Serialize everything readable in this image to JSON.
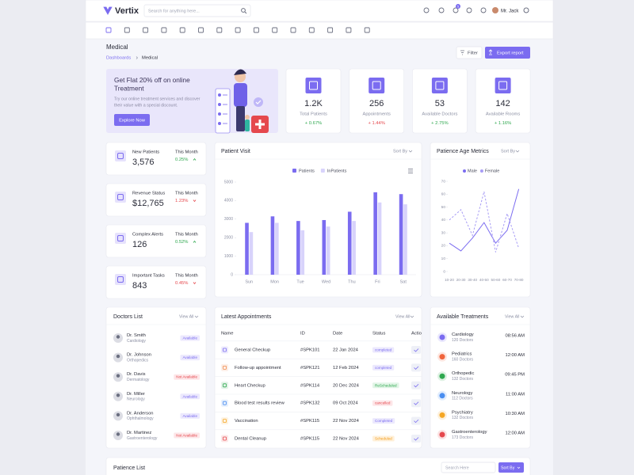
{
  "header": {
    "brand": "Vertix",
    "search_placeholder": "Search for anything here...",
    "cart_badge": "5",
    "user": "Mr. Jack"
  },
  "page": {
    "title": "Medical",
    "breadcrumb": [
      "Dashboards",
      "Medical"
    ],
    "actions": [
      "Filter",
      "Export report"
    ]
  },
  "promo": {
    "title_lines": [
      "Get Flat 20% off on online",
      "Treatment"
    ],
    "text_lines": [
      "Try our online treatment services and discover",
      "their value with a special discount."
    ],
    "button": "Explore Now"
  },
  "stats": [
    {
      "value": "1.2K",
      "label": "Total Patients",
      "change": "+ 0.67%",
      "trend": "up"
    },
    {
      "value": "256",
      "label": "Appointments",
      "change": "+ 1.44%",
      "trend": "down"
    },
    {
      "value": "53",
      "label": "Available Doctors",
      "change": "+ 2.75%",
      "trend": "up"
    },
    {
      "value": "142",
      "label": "Available Rooms",
      "change": "+ 1.16%",
      "trend": "up"
    }
  ],
  "summary_cards": [
    {
      "title": "New Patients",
      "value": "3,576",
      "period": "This Month",
      "change": "0.25%",
      "trend": "up"
    },
    {
      "title": "Revenue Status",
      "value": "$12,765",
      "period": "This Month",
      "change": "1.23%",
      "trend": "down"
    },
    {
      "title": "Complex Alerts",
      "value": "126",
      "period": "This Month",
      "change": "0.52%",
      "trend": "up"
    },
    {
      "title": "Important Tasks",
      "value": "843",
      "period": "This Month",
      "change": "0.45%",
      "trend": "down"
    }
  ],
  "patient_visit": {
    "type": "bar",
    "title": "Patient Visit",
    "sort": "Sort By",
    "categories": [
      "Sun",
      "Mon",
      "Tue",
      "Wed",
      "Thu",
      "Fri",
      "Sat"
    ],
    "series": [
      {
        "name": "Patients",
        "color": "#7b6cf0",
        "values": [
          2800,
          3150,
          2900,
          2950,
          3400,
          4450,
          4350
        ]
      },
      {
        "name": "InPatients",
        "color": "#d8d3fb",
        "values": [
          2300,
          2800,
          2400,
          2600,
          2900,
          3900,
          3800
        ]
      }
    ],
    "ylim": [
      0,
      5000
    ],
    "yticks": [
      0,
      1000,
      2000,
      3000,
      4000,
      5000
    ]
  },
  "age_metrics": {
    "type": "line",
    "title": "Patience Age Metrics",
    "sort": "Sort By",
    "categories": [
      "10-20",
      "20-30",
      "30-40",
      "40-50",
      "50-60",
      "60-70",
      "70-80"
    ],
    "series": [
      {
        "name": "Male",
        "color": "#7b6cf0",
        "dashed": false,
        "values": [
          22,
          16,
          26,
          38,
          22,
          32,
          64
        ]
      },
      {
        "name": "Female",
        "color": "#a79cf5",
        "dashed": true,
        "values": [
          40,
          48,
          28,
          62,
          15,
          45,
          18
        ]
      }
    ],
    "ylim": [
      0,
      70
    ],
    "yticks": [
      0,
      10,
      20,
      30,
      40,
      50,
      60,
      70
    ]
  },
  "doctors": {
    "title": "Doctors List",
    "view_all": "View All",
    "rows": [
      {
        "name": "Dr. Smith",
        "specialty": "Cardiology",
        "status": "Available"
      },
      {
        "name": "Dr. Johnson",
        "specialty": "Orthopedics",
        "status": "Available"
      },
      {
        "name": "Dr. Davis",
        "specialty": "Dermatology",
        "status": "Not Available"
      },
      {
        "name": "Dr. Miller",
        "specialty": "Neurology",
        "status": "Available"
      },
      {
        "name": "Dr. Anderson",
        "specialty": "Ophthalmology",
        "status": "Available"
      },
      {
        "name": "Dr. Martinez",
        "specialty": "Gastroenterology",
        "status": "Not Available"
      }
    ]
  },
  "appointments": {
    "title": "Latest Appointments",
    "view_all": "View All",
    "columns": [
      "Name",
      "ID",
      "Date",
      "Status",
      "Action"
    ],
    "rows": [
      [
        "General Checkup",
        "#SPK101",
        "22 Jan 2024",
        "completed"
      ],
      [
        "Follow-up appointment",
        "#SPK121",
        "12 Feb 2024",
        "completed"
      ],
      [
        "Heart Checkup",
        "#SPK114",
        "20 Dec 2024",
        "ReScheduled"
      ],
      [
        "Blood test results review",
        "#SPK132",
        "09 Oct 2024",
        "cancelled"
      ],
      [
        "Vaccination",
        "#SPK115",
        "22 Nov 2024",
        "Completed"
      ],
      [
        "Dental Cleanup",
        "#SPK115",
        "22 Nov 2024",
        "Scheduled"
      ]
    ]
  },
  "treatments": {
    "title": "Available Treatments",
    "view_all": "View All",
    "rows": [
      {
        "name": "Cardiology",
        "doctors": "120 Doctors",
        "time": "08:56 AM"
      },
      {
        "name": "Pediatrics",
        "doctors": "160 Doctors",
        "time": "12:00 AM"
      },
      {
        "name": "Orthopedic",
        "doctors": "132 Doctors",
        "time": "09:45 PM"
      },
      {
        "name": "Neurology",
        "doctors": "112 Doctors",
        "time": "11:00 AM"
      },
      {
        "name": "Psychiatry",
        "doctors": "132 Doctors",
        "time": "10:30 AM"
      },
      {
        "name": "Gastroenterology",
        "doctors": "173 Doctors",
        "time": "12:00 AM"
      }
    ]
  },
  "patients_list": {
    "title": "Patience List",
    "search_placeholder": "Search Here",
    "sort": "Sort By"
  }
}
